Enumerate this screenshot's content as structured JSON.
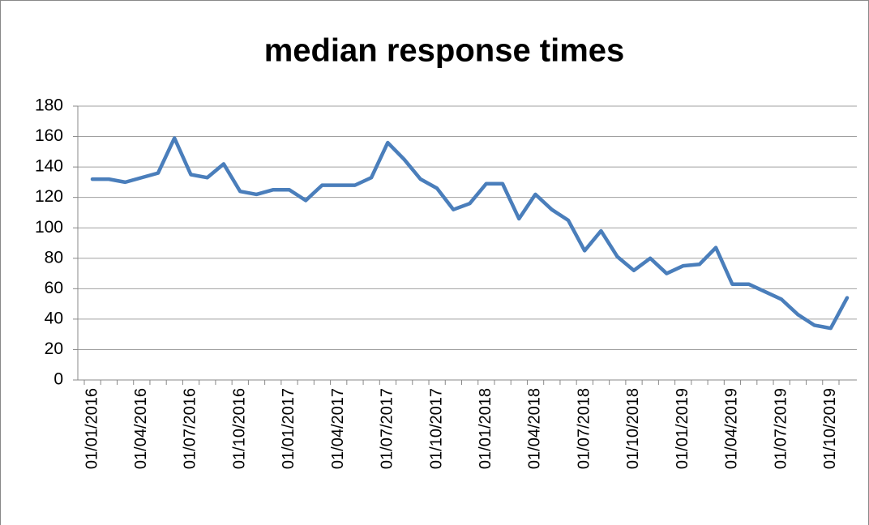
{
  "chart_data": {
    "type": "line",
    "title": "median response times",
    "categories": [
      "01/01/2016",
      null,
      null,
      "01/04/2016",
      null,
      null,
      "01/07/2016",
      null,
      null,
      "01/10/2016",
      null,
      null,
      "01/01/2017",
      null,
      null,
      "01/04/2017",
      null,
      null,
      "01/07/2017",
      null,
      null,
      "01/10/2017",
      null,
      null,
      "01/01/2018",
      null,
      null,
      "01/04/2018",
      null,
      null,
      "01/07/2018",
      null,
      null,
      "01/10/2018",
      null,
      null,
      "01/01/2019",
      null,
      null,
      "01/04/2019",
      null,
      null,
      "01/07/2019",
      null,
      null,
      "01/10/2019",
      null
    ],
    "series": [
      {
        "name": "median response times",
        "color": "#4a7ebb",
        "values": [
          132,
          132,
          130,
          133,
          136,
          159,
          135,
          133,
          142,
          124,
          122,
          125,
          125,
          118,
          128,
          128,
          128,
          133,
          156,
          145,
          132,
          126,
          112,
          116,
          129,
          129,
          106,
          122,
          112,
          105,
          85,
          98,
          81,
          72,
          80,
          70,
          75,
          76,
          87,
          63,
          63,
          58,
          53,
          43,
          36,
          34,
          54
        ]
      }
    ],
    "ylim": [
      0,
      180
    ],
    "yticks": [
      0,
      20,
      40,
      60,
      80,
      100,
      120,
      140,
      160,
      180
    ],
    "grid": true
  }
}
